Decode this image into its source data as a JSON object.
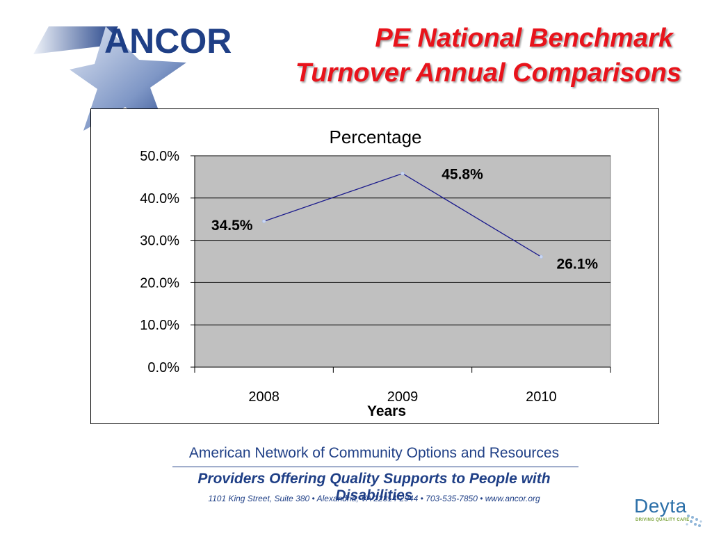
{
  "logo": {
    "text": "ANCOR",
    "colors": {
      "primary": "#1f3f86",
      "light": "#9fb2d6"
    }
  },
  "title": {
    "line1": "PE National Benchmark",
    "line2": "Turnover Annual Comparisons",
    "color": "#e8131b"
  },
  "chart_data": {
    "type": "line",
    "title": "Percentage",
    "xlabel": "Years",
    "ylabel": "",
    "categories": [
      "2008",
      "2009",
      "2010"
    ],
    "series": [
      {
        "values": [
          34.5,
          45.8,
          26.1
        ],
        "data_labels": [
          "34.5%",
          "45.8%",
          "26.1%"
        ],
        "color": "#1a1a8c"
      }
    ],
    "ylim": [
      0,
      50
    ],
    "yticks": [
      "0.0%",
      "10.0%",
      "20.0%",
      "30.0%",
      "40.0%",
      "50.0%"
    ],
    "grid": true,
    "plot_background": "#c0c0c0"
  },
  "footer": {
    "org": "American Network of Community Options and Resources",
    "tagline": "Providers Offering Quality Supports to People with Disabilities",
    "address": "1101 King Street, Suite 380 • Alexandria, VA 22314-2944 • 703-535-7850 • www.ancor.org"
  },
  "partner_logo": {
    "name": "Deyta",
    "tagline": "DRIVING QUALITY CARE",
    "color": "#2b6fa8"
  }
}
